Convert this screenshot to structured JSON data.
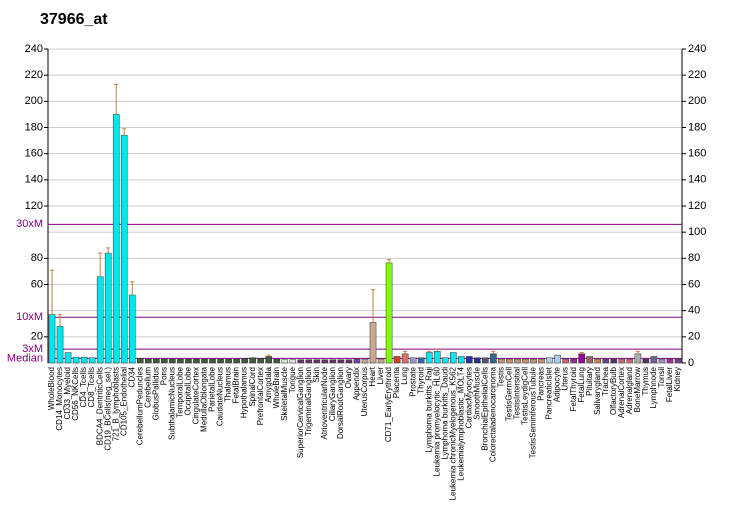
{
  "chart_data": {
    "type": "bar",
    "title": "37966_at",
    "categories": [
      "WholeBlood",
      "CD14_Monocytes",
      "CD33_Myeloid",
      "CD56_NKCells",
      "CD4_Tcells",
      "CD8_Tcells",
      "BDCA4_DentriticCells",
      "CD19_BCells(neg_sel.)",
      "721_B_lymphoblasts",
      "CD105_Endothelial",
      "CD34",
      "CerebellumPeduncles",
      "Cerebellum",
      "GlobusPallidus",
      "Pons",
      "SubthalamicNucleus",
      "TemporalLobe",
      "OccipitalLobe",
      "CingulateCortex",
      "MedullaOblongata",
      "ParietalLobe",
      "CaudateNucleus",
      "Thalamus",
      "FetalBrain",
      "Hypothalamus",
      "SpinalCord",
      "PrefrontalCortex",
      "Amygdala",
      "WholeBrain",
      "SkeletalMuscle",
      "Tongue",
      "SuperiorCervicalGanglion",
      "TrigeminalGanglion",
      "Skin",
      "AtrioventricularNode",
      "CiliaryGanglion",
      "DorsalRootGanglion",
      "Ovary",
      "Appendix",
      "UterusCorpus",
      "Heart",
      "Liver",
      "CD71_EarlyErythroid",
      "Placenta",
      "Lung",
      "Prostate",
      "Thyroid",
      "Lymphoma burkitts_Raji",
      "Leukemia promyelocytic_HL60",
      "Lymphoma burkitts_Daudi",
      "Leukemia chronicMyelogenous_K562",
      "Leukemialymphoblastic_MOLT4",
      "CardiacMyocytes",
      "SmoothMuscle",
      "BronchialEpithelialCells",
      "Colorectaladenocarcinoma",
      "Testis",
      "TestisGermCell",
      "TestisIntersitial",
      "TestisLeydigCell",
      "TestisSeminiferousTubule",
      "Pancreas",
      "PancreaticIslet",
      "Adipocyte",
      "Uterus",
      "FetalThyroid",
      "FetalLung",
      "Pituitary",
      "Salivarygland",
      "Trachea",
      "OlfactoryBulb",
      "AdrenalCortex",
      "Adrenalgland",
      "BoneMarrow",
      "Thymus",
      "Lymphnode",
      "Tonsil",
      "FetalLiver",
      "Kidney"
    ],
    "values": [
      37,
      28,
      8,
      4.5,
      4.5,
      4,
      66,
      84,
      190,
      174,
      52,
      3.5,
      3,
      3,
      3,
      3,
      3,
      3,
      3,
      3,
      3,
      3,
      3,
      3,
      3.5,
      4,
      3.5,
      5,
      3,
      2.5,
      2.5,
      2.5,
      2.5,
      2.5,
      2.5,
      2.5,
      2.5,
      2.5,
      3,
      3,
      31,
      3,
      76.5,
      5,
      7,
      4,
      4,
      8,
      9,
      4,
      8,
      5,
      5,
      4,
      4,
      7,
      3,
      3,
      3,
      3,
      3,
      3,
      4,
      6,
      3,
      3,
      7,
      5,
      3,
      3,
      3,
      3,
      3,
      7,
      3,
      5,
      3,
      3,
      3
    ],
    "errors": [
      34,
      9,
      null,
      null,
      null,
      null,
      18,
      4,
      23,
      5,
      10,
      null,
      null,
      null,
      null,
      null,
      null,
      null,
      null,
      null,
      null,
      null,
      null,
      null,
      null,
      null,
      null,
      1,
      null,
      null,
      null,
      null,
      null,
      null,
      null,
      null,
      null,
      null,
      null,
      null,
      25,
      null,
      2.5,
      null,
      2,
      null,
      null,
      1,
      1.5,
      null,
      null,
      null,
      null,
      null,
      null,
      2,
      null,
      null,
      null,
      null,
      null,
      null,
      null,
      null,
      null,
      null,
      1,
      null,
      null,
      null,
      null,
      null,
      null,
      2,
      null,
      null,
      null,
      null,
      null
    ],
    "colors": [
      "#00e5ee",
      "#00e5ee",
      "#00e5ee",
      "#00e5ee",
      "#00e5ee",
      "#00e5ee",
      "#00e5ee",
      "#00e5ee",
      "#00e5ee",
      "#00e5ee",
      "#00e5ee",
      "#3d5c3d",
      "#3d5c3d",
      "#3d5c3d",
      "#3d5c3d",
      "#3d5c3d",
      "#3d5c3d",
      "#3d5c3d",
      "#3d5c3d",
      "#3d5c3d",
      "#3d5c3d",
      "#3d5c3d",
      "#3d5c3d",
      "#3d5c3d",
      "#3d5c3d",
      "#3d5c3d",
      "#3d5c3d",
      "#3d5c3d",
      "#3d5c3d",
      "#e0e0e0",
      "#e0e0e0",
      "#663366",
      "#663366",
      "#663366",
      "#663366",
      "#663366",
      "#663366",
      "#663366",
      "#7744aa",
      "#c8a890",
      "#c8a890",
      "#c8a890",
      "#80ff00",
      "#cc4422",
      "#e07060",
      "#9999cc",
      "#3366aa",
      "#00e5ee",
      "#00e5ee",
      "#00e5ee",
      "#00e5ee",
      "#00e5ee",
      "#2233aa",
      "#223388",
      "#555577",
      "#336688",
      "#c89070",
      "#c89070",
      "#c89070",
      "#c89070",
      "#c89070",
      "#c89070",
      "#aaccee",
      "#aaccee",
      "#cc6666",
      "#993399",
      "#990099",
      "#996666",
      "#cc8844",
      "#664488",
      "#553366",
      "#cc6677",
      "#cc6677",
      "#aaaaaa",
      "#553366",
      "#666688",
      "#aa88cc",
      "#993399",
      "#774488"
    ],
    "ylim": [
      0,
      240
    ],
    "yticks": [
      240,
      220,
      200,
      180,
      160,
      140,
      120,
      80,
      60,
      20
    ],
    "y2lim": [
      0,
      240
    ],
    "y2ticks": [
      240,
      220,
      200,
      180,
      160,
      140,
      120,
      100,
      80,
      60,
      40,
      20,
      0
    ],
    "reference_lines": [
      {
        "label": "30xM",
        "value": 106
      },
      {
        "label": "10xM",
        "value": 35
      },
      {
        "label": "3xM",
        "value": 10.6
      },
      {
        "label": "Median",
        "value": 3.5
      }
    ],
    "grid": true
  }
}
